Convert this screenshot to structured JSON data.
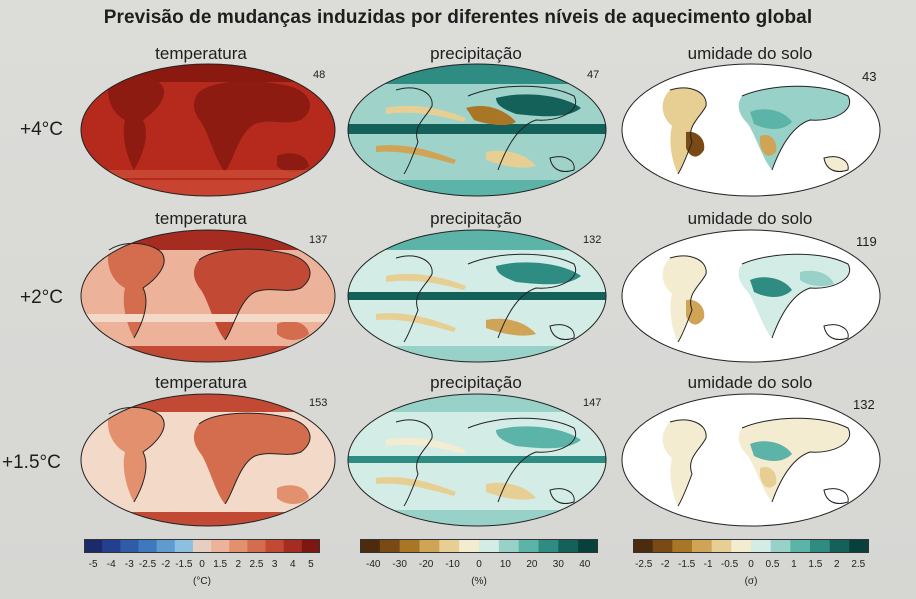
{
  "title": "Previsão de mudanças induzidas por diferentes níveis de aquecimento global",
  "columns": [
    "temperatura",
    "precipitação",
    "umidade do solo"
  ],
  "rows": [
    {
      "label": "+4°C",
      "counts": [
        "48",
        "47",
        "43"
      ]
    },
    {
      "label": "+2°C",
      "counts": [
        "137",
        "132",
        "119"
      ]
    },
    {
      "label": "+1.5°C",
      "counts": [
        "153",
        "147",
        "132"
      ]
    }
  ],
  "colorbars": [
    {
      "name": "temperature",
      "unit": "(°C)",
      "ticks": [
        "-5",
        "-4",
        "-3",
        "-2.5",
        "-2",
        "-1.5",
        "0",
        "1.5",
        "2",
        "2.5",
        "3",
        "4",
        "5"
      ],
      "colors": [
        "#1b2a6b",
        "#23408f",
        "#2f5ba8",
        "#3f79bd",
        "#5f9bcf",
        "#8fbfe0",
        "#e6cfc0",
        "#edb39a",
        "#e3906f",
        "#d46d4e",
        "#c24a35",
        "#a62b20",
        "#7e1611"
      ]
    },
    {
      "name": "precipitation",
      "unit": "(%)",
      "ticks": [
        "-40",
        "-30",
        "-20",
        "-10",
        "0",
        "10",
        "20",
        "30",
        "40"
      ],
      "colors": [
        "#4d2c0d",
        "#7a4a16",
        "#a97626",
        "#cfa456",
        "#e7cf94",
        "#f4ecd0",
        "#d3ece6",
        "#97d1c7",
        "#5cb3a8",
        "#2f8c83",
        "#14615a",
        "#08403c"
      ]
    },
    {
      "name": "soil_moisture",
      "unit": "(σ)",
      "ticks": [
        "-2.5",
        "-2",
        "-1.5",
        "-1",
        "-0.5",
        "0",
        "0.5",
        "1",
        "1.5",
        "2",
        "2.5"
      ],
      "colors": [
        "#4d2c0d",
        "#7a4a16",
        "#a97626",
        "#cfa456",
        "#e7cf94",
        "#f4ecd0",
        "#d3ece6",
        "#97d1c7",
        "#5cb3a8",
        "#2f8c83",
        "#14615a",
        "#08403c"
      ]
    }
  ]
}
